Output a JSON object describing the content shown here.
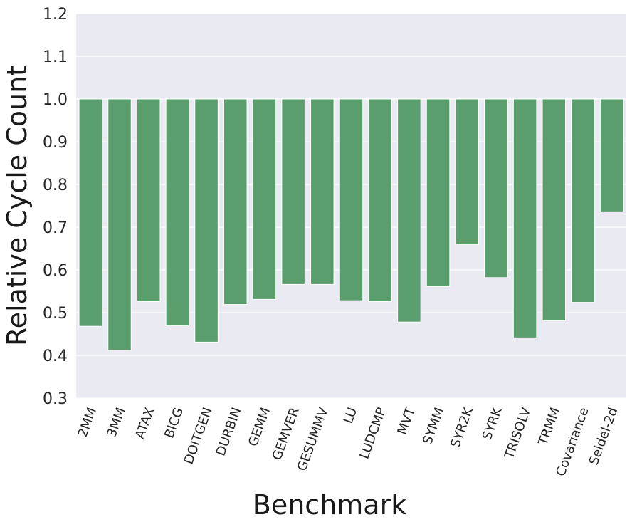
{
  "chart_data": {
    "type": "bar",
    "xlabel": "Benchmark",
    "ylabel": "Relative Cycle Count",
    "ylim": [
      0.3,
      1.2
    ],
    "yticks": [
      "0.3",
      "0.4",
      "0.5",
      "0.6",
      "0.7",
      "0.8",
      "0.9",
      "1.0",
      "1.1",
      "1.2"
    ],
    "grid": true,
    "bar_top": 1.0,
    "bar_color": "#5b9e6d",
    "plot_background": "#eaeaf2",
    "categories": [
      "2MM",
      "3MM",
      "ATAX",
      "BICG",
      "DOITGEN",
      "DURBIN",
      "GEMM",
      "GEMVER",
      "GESUMMV",
      "LU",
      "LUDCMP",
      "MVT",
      "SYMM",
      "SYR2K",
      "SYRK",
      "TRISOLV",
      "TRMM",
      "Covariance",
      "Seidel-2d"
    ],
    "values": [
      0.468,
      0.412,
      0.526,
      0.469,
      0.431,
      0.519,
      0.531,
      0.566,
      0.566,
      0.528,
      0.526,
      0.478,
      0.561,
      0.659,
      0.582,
      0.441,
      0.481,
      0.524,
      0.736
    ]
  }
}
